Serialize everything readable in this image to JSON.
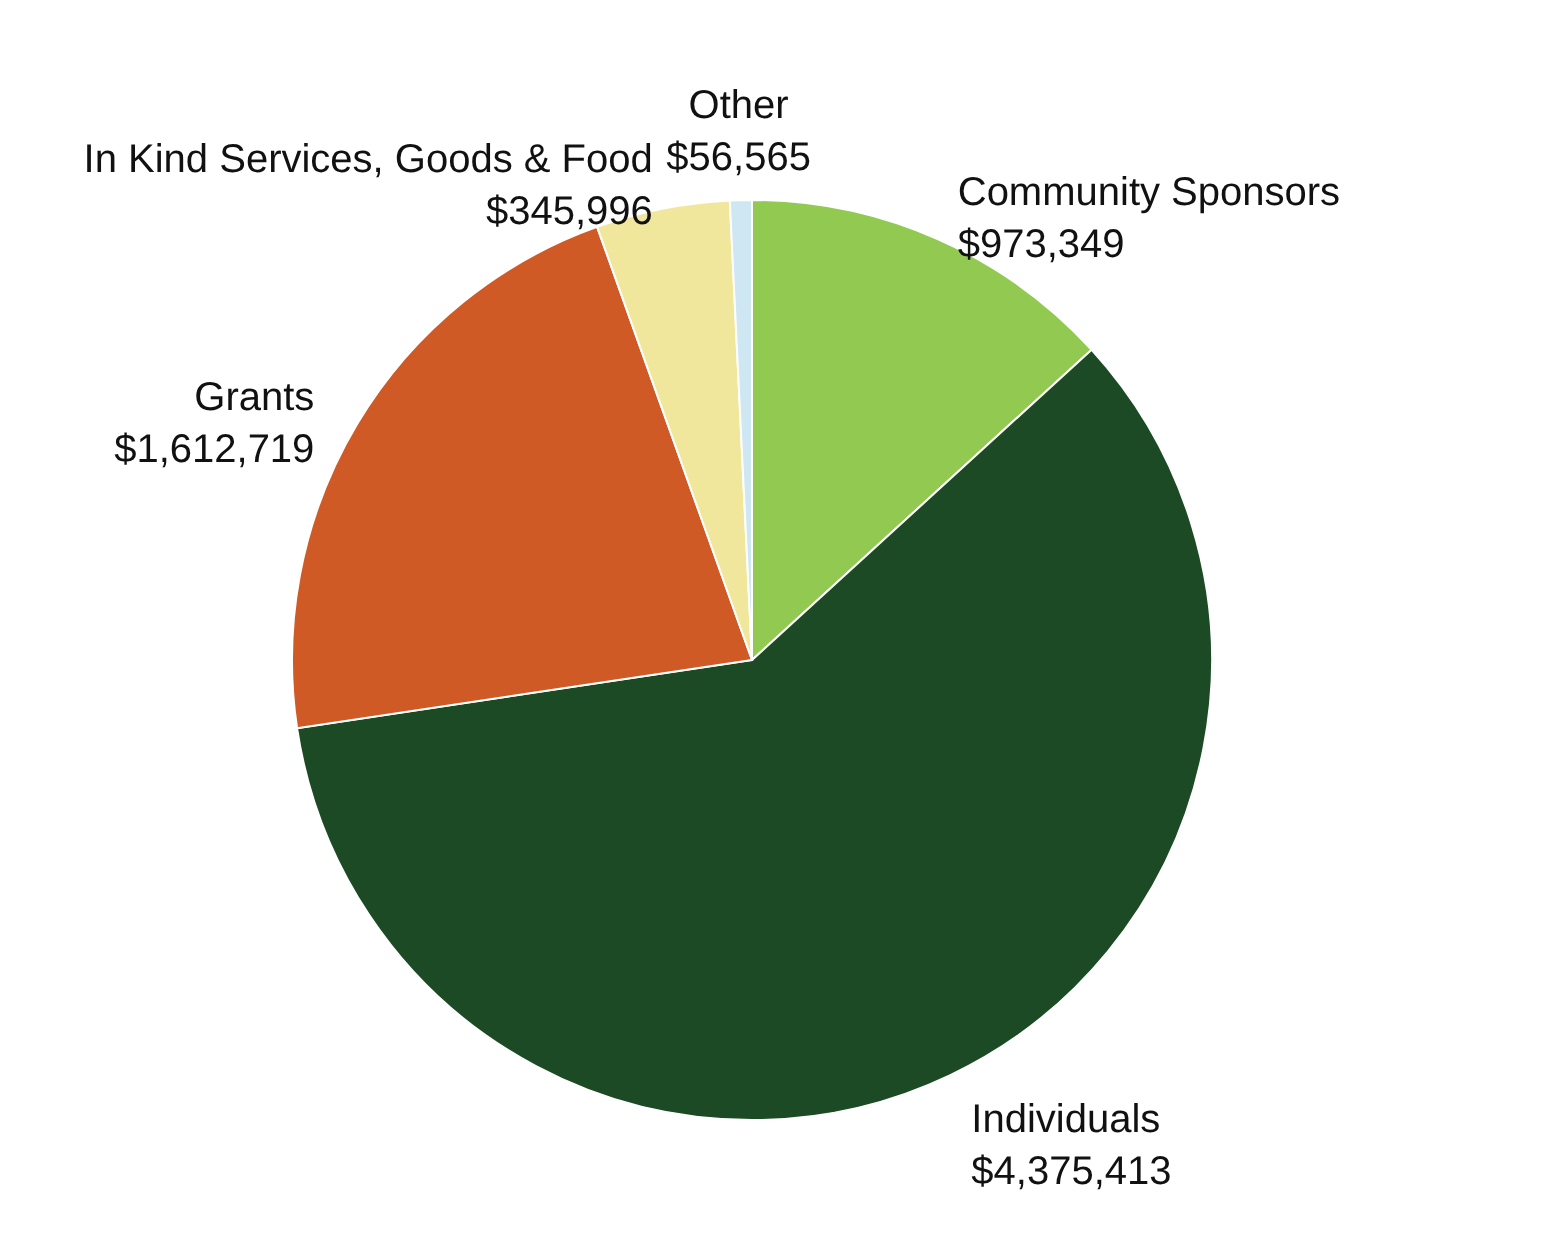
{
  "chart_data": {
    "type": "pie",
    "categories": [
      "Community Sponsors",
      "Individuals",
      "Grants",
      "In Kind Services, Goods & Food",
      "Other"
    ],
    "values": [
      973349,
      4375413,
      1612719,
      345996,
      56565
    ],
    "colors": [
      "#92c950",
      "#1b4a24",
      "#cf5a26",
      "#f0e79c",
      "#cfe6f3"
    ],
    "value_labels": [
      "$973,349",
      "$4,375,413",
      "$1,612,719",
      "$345,996",
      "$56,565"
    ]
  }
}
